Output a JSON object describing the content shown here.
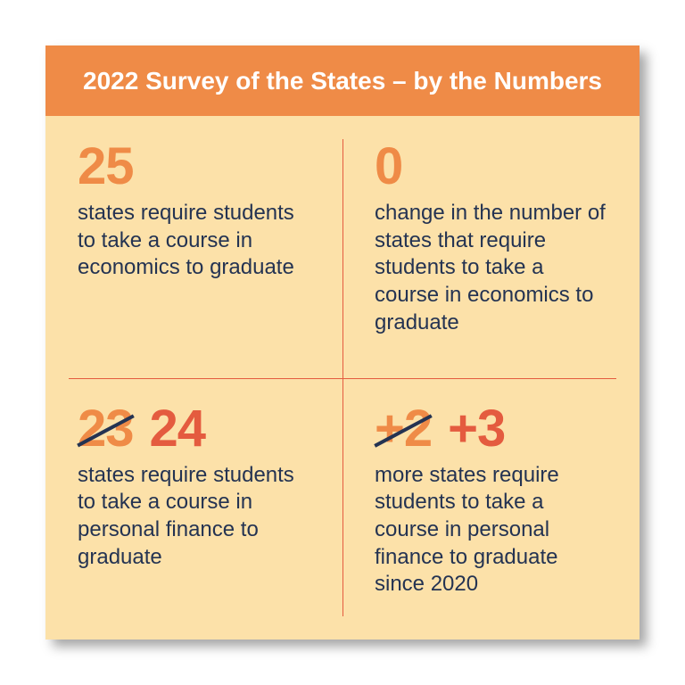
{
  "card": {
    "background_color": "#fce1a9",
    "shadow_color": "rgba(0,0,0,0.35)"
  },
  "header": {
    "title": "2022 Survey of the States – by the Numbers",
    "bg_color": "#ef8b47",
    "text_color": "#ffffff",
    "fontsize": 28
  },
  "divider_color": "#e45b3f",
  "text_color": "#243352",
  "number_primary_color": "#ef8b47",
  "number_updated_color": "#e45b3f",
  "strike_color": "#243352",
  "cells": [
    {
      "number": "25",
      "desc": "states require students to take a course in economics to graduate"
    },
    {
      "number": "0",
      "desc": "change in the number of states that require students to take a course in economics to graduate"
    },
    {
      "old_number": "23",
      "new_number": "24",
      "desc": "states require students to take a course in personal finance to graduate"
    },
    {
      "old_number": "+2",
      "new_number": "+3",
      "desc": "more states require students to take a course in personal finance to graduate since 2020"
    }
  ]
}
